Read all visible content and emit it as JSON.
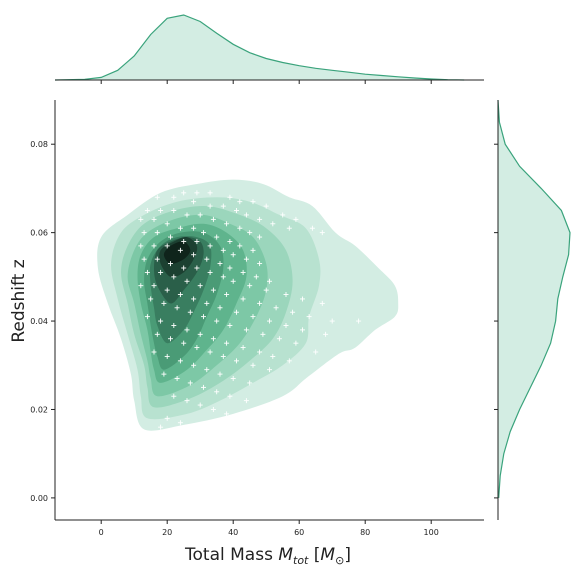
{
  "chart_data": {
    "type": "joint-kde",
    "xlabel": {
      "prefix": "Total Mass  ",
      "symbol": "M",
      "subscript": "tot",
      "unit_open": " [",
      "unit_symbol": "M",
      "unit_subscript": "⊙",
      "unit_close": "]"
    },
    "ylabel": "Redshift z",
    "xlim": [
      -14,
      116
    ],
    "ylim": [
      -0.005,
      0.09
    ],
    "x_ticks": [
      0,
      20,
      40,
      60,
      80,
      100
    ],
    "x_tick_labels": [
      "0",
      "20",
      "40",
      "60",
      "80",
      "100"
    ],
    "y_ticks": [
      0.0,
      0.02,
      0.04,
      0.06,
      0.08
    ],
    "y_tick_labels": [
      "0.00",
      "0.02",
      "0.04",
      "0.06",
      "0.08"
    ],
    "grid": false,
    "colors": {
      "accent": "#3aa37c",
      "fill_light": "#d3ede3",
      "levels": [
        "#d3ede3",
        "#b8e2d0",
        "#9bd6bc",
        "#7dc8a6",
        "#5fb48d",
        "#4a9b76",
        "#397e60",
        "#2a5f49",
        "#1c4031",
        "#0f241b"
      ],
      "points": "#ffffff"
    },
    "kde_levels": [
      {
        "level": 1,
        "points": [
          [
            13,
            15.5
          ],
          [
            25,
            16.5
          ],
          [
            40,
            19
          ],
          [
            55,
            23
          ],
          [
            62,
            27
          ],
          [
            69,
            31
          ],
          [
            73,
            33
          ],
          [
            77,
            34
          ],
          [
            83,
            38
          ],
          [
            89,
            41
          ],
          [
            90,
            44
          ],
          [
            89,
            48
          ],
          [
            84,
            52
          ],
          [
            77,
            57
          ],
          [
            71,
            60
          ],
          [
            64,
            66
          ],
          [
            57,
            68
          ],
          [
            49,
            71
          ],
          [
            40,
            72
          ],
          [
            29,
            71
          ],
          [
            18,
            69
          ],
          [
            8,
            64
          ],
          [
            0,
            59
          ],
          [
            -1,
            52
          ],
          [
            2,
            44
          ],
          [
            6,
            36
          ],
          [
            9,
            28
          ],
          [
            10,
            22
          ]
        ]
      },
      {
        "level": 2,
        "points": [
          [
            14,
            18
          ],
          [
            26,
            19
          ],
          [
            36,
            22
          ],
          [
            46,
            26
          ],
          [
            55,
            30
          ],
          [
            62,
            35
          ],
          [
            63,
            41
          ],
          [
            66,
            48
          ],
          [
            66,
            54
          ],
          [
            62,
            61
          ],
          [
            54,
            64
          ],
          [
            45,
            67
          ],
          [
            35,
            68
          ],
          [
            23,
            67
          ],
          [
            13,
            64
          ],
          [
            6,
            60
          ],
          [
            3,
            53
          ],
          [
            5,
            45
          ],
          [
            8,
            37
          ],
          [
            11,
            29
          ],
          [
            12,
            23
          ]
        ]
      },
      {
        "level": 3,
        "points": [
          [
            16,
            20.5
          ],
          [
            27,
            22.5
          ],
          [
            37,
            26.5
          ],
          [
            45,
            31
          ],
          [
            52,
            36
          ],
          [
            56,
            42
          ],
          [
            58,
            49
          ],
          [
            56,
            56
          ],
          [
            50,
            61
          ],
          [
            42,
            64
          ],
          [
            32,
            66
          ],
          [
            22,
            65
          ],
          [
            13,
            62
          ],
          [
            8,
            57
          ],
          [
            6,
            51
          ],
          [
            8,
            44
          ],
          [
            10,
            37
          ],
          [
            13,
            30
          ],
          [
            14,
            25
          ]
        ]
      },
      {
        "level": 4,
        "points": [
          [
            17,
            23
          ],
          [
            27,
            25.5
          ],
          [
            35,
            30
          ],
          [
            42,
            35
          ],
          [
            47,
            41
          ],
          [
            50,
            47
          ],
          [
            50,
            53
          ],
          [
            46,
            59
          ],
          [
            39,
            62
          ],
          [
            31,
            64
          ],
          [
            22,
            63
          ],
          [
            14,
            60
          ],
          [
            10,
            56
          ],
          [
            8,
            50
          ],
          [
            10,
            44
          ],
          [
            12,
            37
          ],
          [
            14,
            31
          ],
          [
            15,
            27
          ]
        ]
      },
      {
        "level": 5,
        "points": [
          [
            18,
            26
          ],
          [
            26,
            29
          ],
          [
            32,
            33.5
          ],
          [
            37,
            38
          ],
          [
            41,
            44
          ],
          [
            44,
            50
          ],
          [
            43,
            56
          ],
          [
            38,
            60
          ],
          [
            31,
            62
          ],
          [
            23,
            61
          ],
          [
            16,
            59
          ],
          [
            12,
            55
          ],
          [
            11,
            50
          ],
          [
            12,
            44
          ],
          [
            14,
            38
          ],
          [
            15,
            33
          ],
          [
            16,
            29
          ]
        ]
      },
      {
        "level": 6,
        "points": [
          [
            19,
            29
          ],
          [
            25,
            32
          ],
          [
            29,
            36
          ],
          [
            32,
            41
          ],
          [
            35,
            46
          ],
          [
            37,
            52
          ],
          [
            36,
            57
          ],
          [
            31,
            60
          ],
          [
            24,
            60
          ],
          [
            18,
            58
          ],
          [
            14,
            54
          ],
          [
            13,
            49
          ],
          [
            14,
            44
          ],
          [
            15,
            39
          ],
          [
            16,
            35
          ],
          [
            17,
            32
          ]
        ]
      },
      {
        "level": 7,
        "points": [
          [
            20,
            35
          ],
          [
            25,
            38
          ],
          [
            28,
            42
          ],
          [
            31,
            47
          ],
          [
            33,
            52
          ],
          [
            33,
            57
          ],
          [
            29,
            59
          ],
          [
            23,
            59
          ],
          [
            18,
            57
          ],
          [
            15,
            53
          ],
          [
            15,
            48
          ],
          [
            16,
            43
          ],
          [
            17,
            39
          ]
        ]
      },
      {
        "level": 8,
        "points": [
          [
            21,
            44
          ],
          [
            25,
            47
          ],
          [
            29,
            51
          ],
          [
            31,
            55
          ],
          [
            30,
            58
          ],
          [
            26,
            59
          ],
          [
            21,
            58
          ],
          [
            17,
            56
          ],
          [
            16,
            52
          ],
          [
            17,
            48
          ]
        ]
      },
      {
        "level": 9,
        "points": [
          [
            21,
            50
          ],
          [
            25,
            51
          ],
          [
            28,
            54
          ],
          [
            29,
            57
          ],
          [
            26,
            59
          ],
          [
            22,
            58
          ],
          [
            18,
            56
          ],
          [
            18,
            53
          ]
        ]
      },
      {
        "level": 10,
        "points": [
          [
            21,
            53
          ],
          [
            25,
            54
          ],
          [
            27,
            56
          ],
          [
            25,
            58
          ],
          [
            21,
            57
          ],
          [
            19,
            55
          ]
        ]
      }
    ],
    "points": [
      [
        16,
        70
      ],
      [
        19,
        70
      ],
      [
        25,
        69
      ],
      [
        29,
        69
      ],
      [
        33,
        69
      ],
      [
        39,
        68
      ],
      [
        42,
        67
      ],
      [
        46,
        67
      ],
      [
        50,
        66
      ],
      [
        55,
        64
      ],
      [
        59,
        63
      ],
      [
        64,
        61
      ],
      [
        67,
        60
      ],
      [
        17,
        68
      ],
      [
        22,
        68
      ],
      [
        28,
        67
      ],
      [
        33,
        66
      ],
      [
        37,
        66
      ],
      [
        41,
        65
      ],
      [
        44,
        64
      ],
      [
        48,
        63
      ],
      [
        52,
        62
      ],
      [
        57,
        61
      ],
      [
        14,
        65
      ],
      [
        18,
        65
      ],
      [
        22,
        65
      ],
      [
        26,
        64
      ],
      [
        30,
        64
      ],
      [
        34,
        63
      ],
      [
        38,
        62
      ],
      [
        42,
        61
      ],
      [
        45,
        60
      ],
      [
        48,
        59
      ],
      [
        12,
        63
      ],
      [
        16,
        63
      ],
      [
        20,
        62
      ],
      [
        24,
        61
      ],
      [
        28,
        61
      ],
      [
        31,
        60
      ],
      [
        35,
        59
      ],
      [
        39,
        58
      ],
      [
        42,
        57
      ],
      [
        46,
        56
      ],
      [
        13,
        60
      ],
      [
        17,
        60
      ],
      [
        21,
        59
      ],
      [
        25,
        58
      ],
      [
        29,
        58
      ],
      [
        33,
        57
      ],
      [
        37,
        56
      ],
      [
        40,
        55
      ],
      [
        44,
        54
      ],
      [
        48,
        53
      ],
      [
        12,
        57
      ],
      [
        16,
        57
      ],
      [
        20,
        57
      ],
      [
        24,
        56
      ],
      [
        28,
        55
      ],
      [
        32,
        54
      ],
      [
        36,
        53
      ],
      [
        39,
        52
      ],
      [
        43,
        51
      ],
      [
        47,
        50
      ],
      [
        51,
        49
      ],
      [
        13,
        54
      ],
      [
        17,
        54
      ],
      [
        21,
        53
      ],
      [
        25,
        52
      ],
      [
        29,
        52
      ],
      [
        33,
        51
      ],
      [
        37,
        50
      ],
      [
        40,
        49
      ],
      [
        45,
        48
      ],
      [
        50,
        47
      ],
      [
        56,
        46
      ],
      [
        61,
        45
      ],
      [
        67,
        44
      ],
      [
        78,
        40
      ],
      [
        14,
        51
      ],
      [
        18,
        51
      ],
      [
        22,
        50
      ],
      [
        26,
        49
      ],
      [
        30,
        48
      ],
      [
        34,
        47
      ],
      [
        38,
        46
      ],
      [
        43,
        45
      ],
      [
        48,
        44
      ],
      [
        53,
        43
      ],
      [
        58,
        42
      ],
      [
        63,
        41
      ],
      [
        70,
        40
      ],
      [
        12,
        48
      ],
      [
        16,
        48
      ],
      [
        20,
        47
      ],
      [
        24,
        46
      ],
      [
        28,
        45
      ],
      [
        32,
        44
      ],
      [
        36,
        43
      ],
      [
        41,
        42
      ],
      [
        46,
        41
      ],
      [
        51,
        40
      ],
      [
        56,
        39
      ],
      [
        61,
        38
      ],
      [
        68,
        37
      ],
      [
        15,
        45
      ],
      [
        19,
        44
      ],
      [
        23,
        43
      ],
      [
        27,
        42
      ],
      [
        31,
        41
      ],
      [
        35,
        40
      ],
      [
        39,
        39
      ],
      [
        44,
        38
      ],
      [
        49,
        37
      ],
      [
        54,
        36
      ],
      [
        59,
        35
      ],
      [
        65,
        33
      ],
      [
        14,
        41
      ],
      [
        18,
        40
      ],
      [
        22,
        39
      ],
      [
        26,
        38
      ],
      [
        30,
        37
      ],
      [
        34,
        36
      ],
      [
        38,
        35
      ],
      [
        43,
        34
      ],
      [
        48,
        33
      ],
      [
        52,
        32
      ],
      [
        57,
        31
      ],
      [
        17,
        37
      ],
      [
        21,
        36
      ],
      [
        25,
        35
      ],
      [
        29,
        34
      ],
      [
        33,
        33
      ],
      [
        37,
        32
      ],
      [
        41,
        31
      ],
      [
        46,
        30
      ],
      [
        51,
        29
      ],
      [
        16,
        33
      ],
      [
        20,
        32
      ],
      [
        24,
        31
      ],
      [
        28,
        30
      ],
      [
        32,
        29
      ],
      [
        36,
        28
      ],
      [
        40,
        27
      ],
      [
        45,
        26
      ],
      [
        19,
        28
      ],
      [
        23,
        27
      ],
      [
        27,
        26
      ],
      [
        31,
        25
      ],
      [
        35,
        24
      ],
      [
        39,
        23
      ],
      [
        44,
        22
      ],
      [
        22,
        23
      ],
      [
        26,
        22
      ],
      [
        30,
        21
      ],
      [
        34,
        20
      ],
      [
        38,
        19
      ],
      [
        42,
        18
      ],
      [
        20,
        18
      ],
      [
        24,
        17
      ],
      [
        28,
        16
      ],
      [
        32,
        15.5
      ],
      [
        18,
        16
      ],
      [
        25,
        15.5
      ]
    ],
    "marginal_x": {
      "x": [
        -14,
        -5,
        0,
        5,
        10,
        15,
        20,
        25,
        30,
        35,
        40,
        45,
        50,
        55,
        60,
        65,
        70,
        75,
        80,
        85,
        90,
        95,
        100,
        105,
        110
      ],
      "density": [
        0.0,
        0.01,
        0.04,
        0.15,
        0.37,
        0.7,
        0.95,
        1.0,
        0.9,
        0.72,
        0.55,
        0.42,
        0.33,
        0.27,
        0.22,
        0.18,
        0.15,
        0.12,
        0.09,
        0.07,
        0.05,
        0.03,
        0.015,
        0.005,
        0.0
      ]
    },
    "marginal_y": {
      "y": [
        0.0,
        0.005,
        0.01,
        0.015,
        0.02,
        0.025,
        0.03,
        0.035,
        0.04,
        0.045,
        0.05,
        0.055,
        0.06,
        0.065,
        0.07,
        0.075,
        0.08,
        0.085,
        0.09
      ],
      "density": [
        0.01,
        0.03,
        0.08,
        0.17,
        0.3,
        0.45,
        0.6,
        0.73,
        0.8,
        0.83,
        0.9,
        0.98,
        1.0,
        0.88,
        0.6,
        0.3,
        0.1,
        0.02,
        0.0
      ]
    }
  }
}
